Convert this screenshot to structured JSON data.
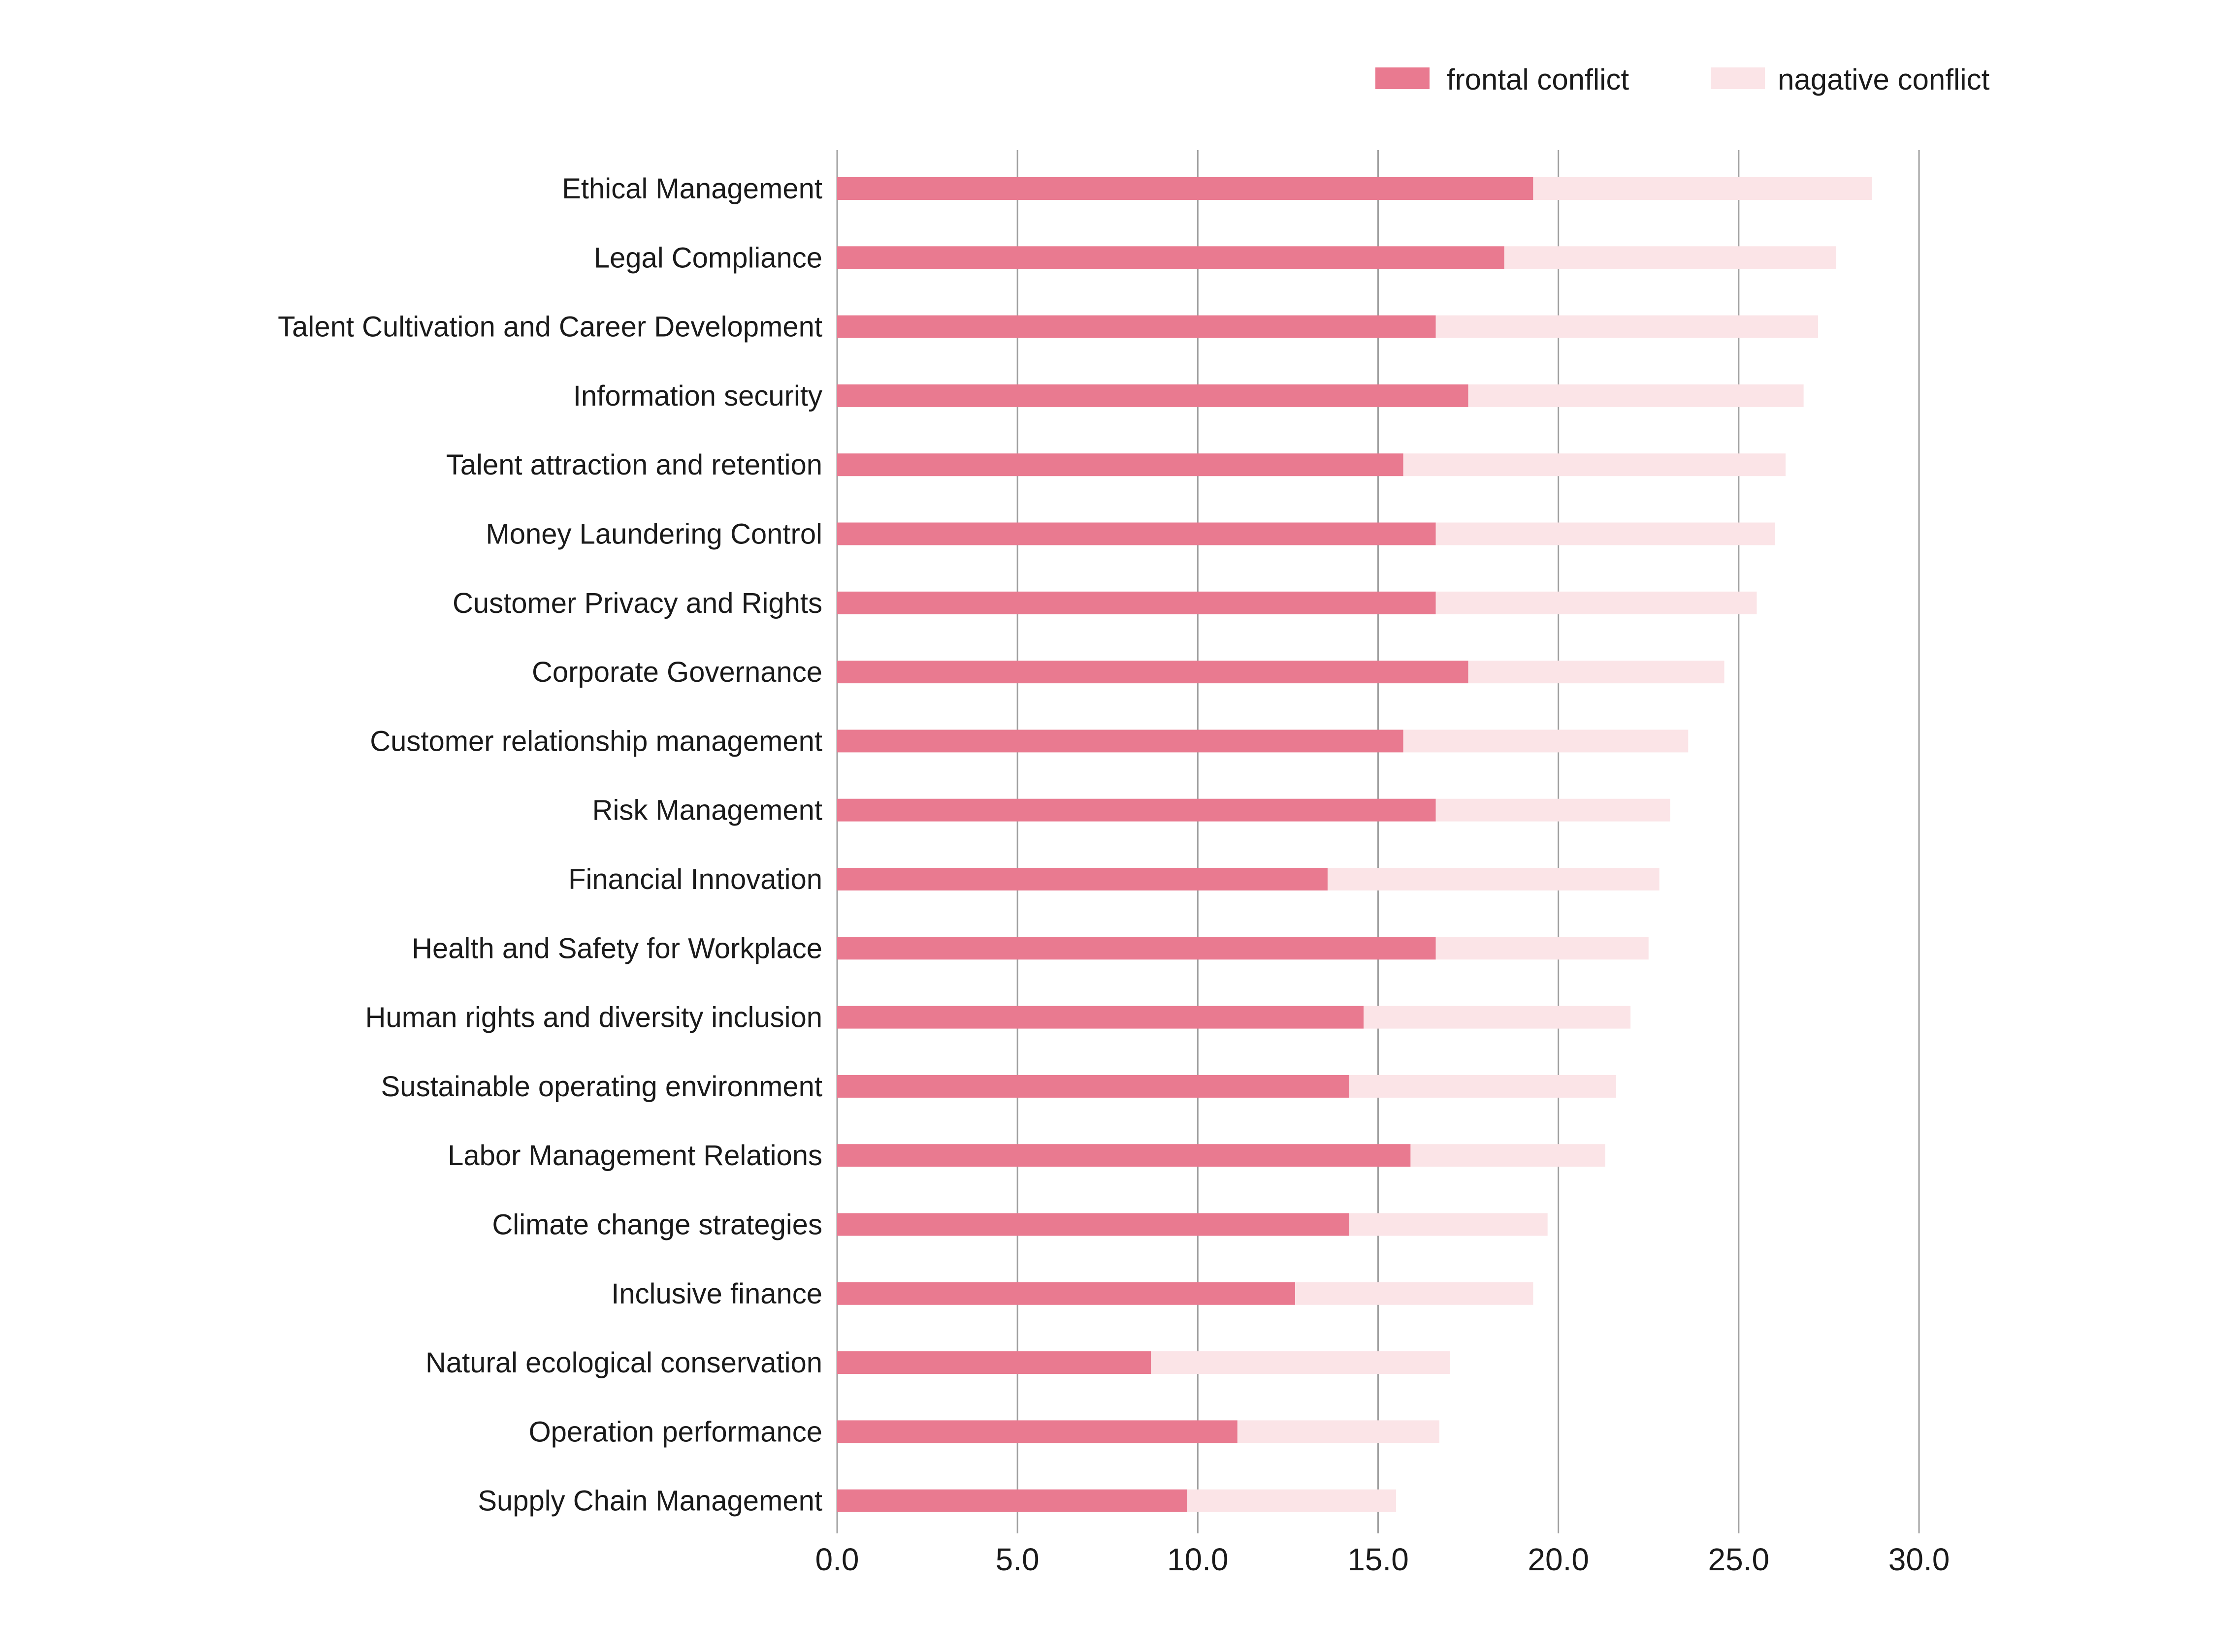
{
  "chart_data": {
    "type": "bar",
    "orientation": "horizontal",
    "stacked": true,
    "title": "",
    "xlabel": "",
    "ylabel": "",
    "xlim": [
      0,
      30
    ],
    "x_ticks": [
      "0.0",
      "5.0",
      "10.0",
      "15.0",
      "20.0",
      "25.0",
      "30.0"
    ],
    "grid": true,
    "legend_position": "top-right",
    "categories": [
      "Ethical Management",
      "Legal Compliance",
      "Talent Cultivation and Career Development",
      "Information security",
      "Talent attraction and retention",
      "Money Laundering Control",
      "Customer Privacy and Rights",
      "Corporate Governance",
      "Customer relationship management",
      "Risk Management",
      "Financial Innovation",
      "Health and Safety for Workplace",
      "Human rights and diversity inclusion",
      "Sustainable operating environment",
      "Labor Management Relations",
      "Climate change strategies",
      "Inclusive finance",
      "Natural ecological conservation",
      "Operation performance",
      "Supply Chain Management"
    ],
    "series": [
      {
        "name": "frontal conflict",
        "color": "#e97a90",
        "values": [
          19.3,
          18.5,
          16.6,
          17.5,
          15.7,
          16.6,
          16.6,
          17.5,
          15.7,
          16.6,
          13.6,
          16.6,
          14.6,
          14.2,
          15.9,
          14.2,
          12.7,
          8.7,
          11.1,
          9.7
        ]
      },
      {
        "name": "nagative conflict",
        "color": "#fbe4e7",
        "values": [
          9.4,
          9.2,
          10.6,
          9.3,
          10.6,
          9.4,
          8.9,
          7.1,
          7.9,
          6.5,
          9.2,
          5.9,
          7.4,
          7.4,
          5.4,
          5.5,
          6.6,
          8.3,
          5.6,
          5.8
        ]
      }
    ],
    "totals": [
      28.7,
      27.7,
      27.2,
      26.8,
      26.3,
      26.0,
      25.5,
      24.6,
      23.6,
      23.1,
      22.8,
      22.5,
      22.0,
      21.6,
      21.3,
      19.7,
      19.3,
      17.0,
      16.7,
      15.5
    ]
  },
  "colors": {
    "grid": "#a0a0a0",
    "text": "#1a1a1a"
  }
}
